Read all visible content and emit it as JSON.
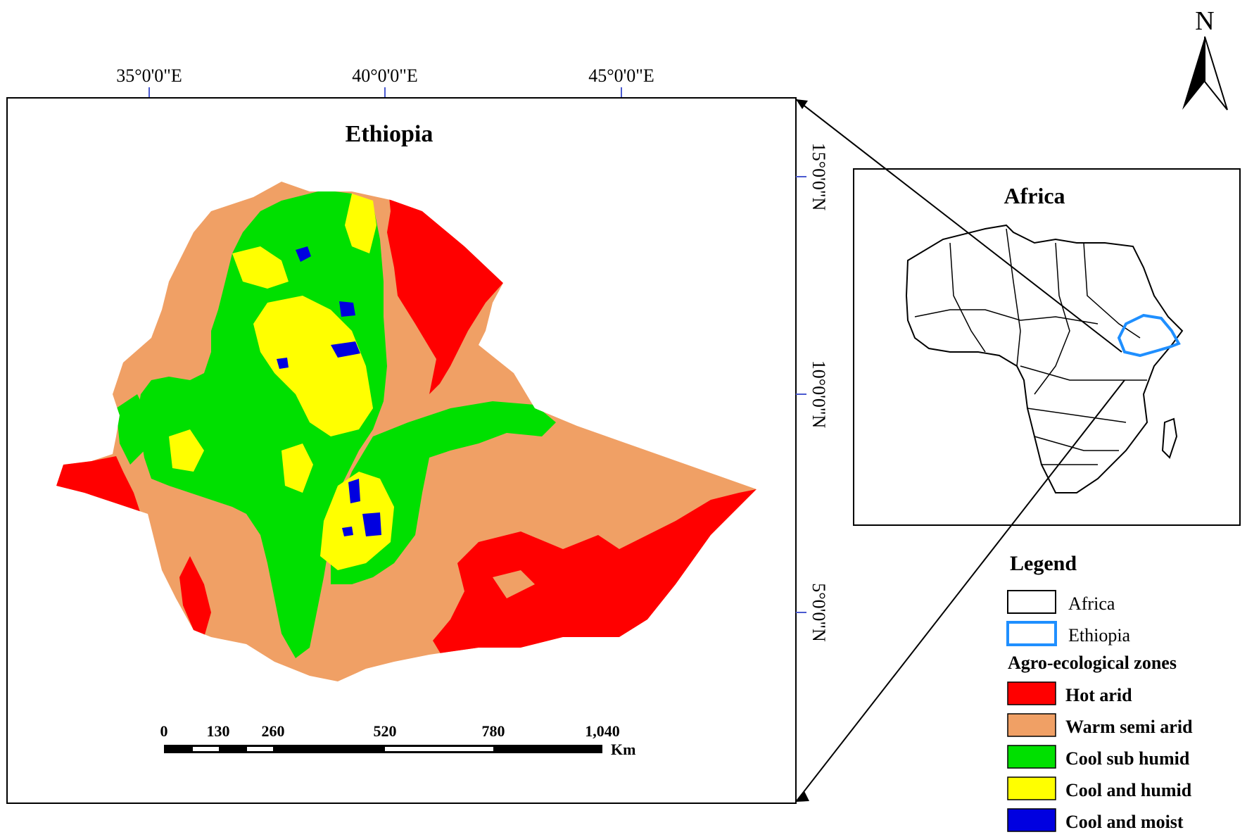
{
  "north_arrow": {
    "label": "N",
    "icon": "north-arrow-icon"
  },
  "main_map": {
    "title": "Ethiopia",
    "longitude_ticks": [
      "35°0'0\"E",
      "40°0'0\"E",
      "45°0'0\"E"
    ],
    "latitude_ticks": [
      "15°0'0\"N",
      "10°0'0\"N",
      "5°0'0\"N"
    ]
  },
  "scale_bar": {
    "labels": [
      "0",
      "130",
      "260",
      "520",
      "780",
      "1,040"
    ],
    "unit": "Km"
  },
  "inset_map": {
    "title": "Africa"
  },
  "legend": {
    "title": "Legend",
    "items": [
      {
        "label": "Africa",
        "swatch": "#ffffff",
        "border": "#000000"
      },
      {
        "label": "Ethiopia",
        "swatch": "#ffffff",
        "border": "#1f8fff"
      }
    ],
    "section_title": "Agro-ecological zones",
    "zones": [
      {
        "label": "Hot arid",
        "color": "#ff0000"
      },
      {
        "label": "Warm semi arid",
        "color": "#f0a065"
      },
      {
        "label": "Cool sub humid",
        "color": "#00e000"
      },
      {
        "label": "Cool and humid",
        "color": "#ffff00"
      },
      {
        "label": "Cool and moist",
        "color": "#0000e0"
      }
    ]
  },
  "colors": {
    "hot_arid": "#ff0000",
    "warm_semi_arid": "#f0a065",
    "cool_sub_humid": "#00e000",
    "cool_and_humid": "#ffff00",
    "cool_and_moist": "#0000e0",
    "ethiopia_outline": "#1f8fff",
    "tick": "#4a5ad0"
  }
}
